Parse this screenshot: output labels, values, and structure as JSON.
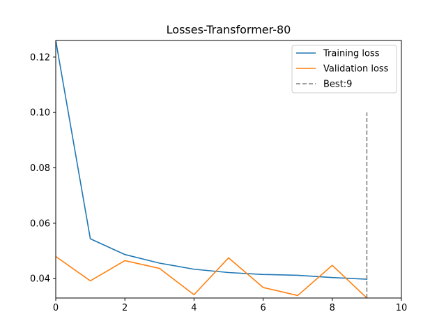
{
  "chart_data": {
    "type": "line",
    "title": "Losses-Transformer-80",
    "xlabel": "",
    "ylabel": "",
    "xlim": [
      0,
      10
    ],
    "ylim": [
      0.033,
      0.126
    ],
    "xticks": [
      0,
      2,
      4,
      6,
      8,
      10
    ],
    "xtick_labels": [
      "0",
      "2",
      "4",
      "6",
      "8",
      "10"
    ],
    "yticks": [
      0.04,
      0.06,
      0.08,
      0.1,
      0.12
    ],
    "ytick_labels": [
      "0.04",
      "0.06",
      "0.08",
      "0.10",
      "0.12"
    ],
    "grid": false,
    "legend_position": "top-right",
    "x": [
      0,
      1,
      2,
      3,
      4,
      5,
      6,
      7,
      8,
      9
    ],
    "series": [
      {
        "name": "Training loss",
        "color": "#1f77b4",
        "style": "solid",
        "values": [
          0.126,
          0.0544,
          0.0487,
          0.0456,
          0.0434,
          0.0422,
          0.0415,
          0.0412,
          0.0404,
          0.0398
        ]
      },
      {
        "name": "Validation loss",
        "color": "#ff7f0e",
        "style": "solid",
        "values": [
          0.048,
          0.0392,
          0.0465,
          0.0437,
          0.0342,
          0.0475,
          0.0368,
          0.0339,
          0.0448,
          0.033
        ]
      }
    ],
    "vlines": [
      {
        "name": "Best:9",
        "x": 9,
        "ymin": 0.033,
        "ymax": 0.1,
        "color": "#808080",
        "style": "dashed"
      }
    ]
  }
}
